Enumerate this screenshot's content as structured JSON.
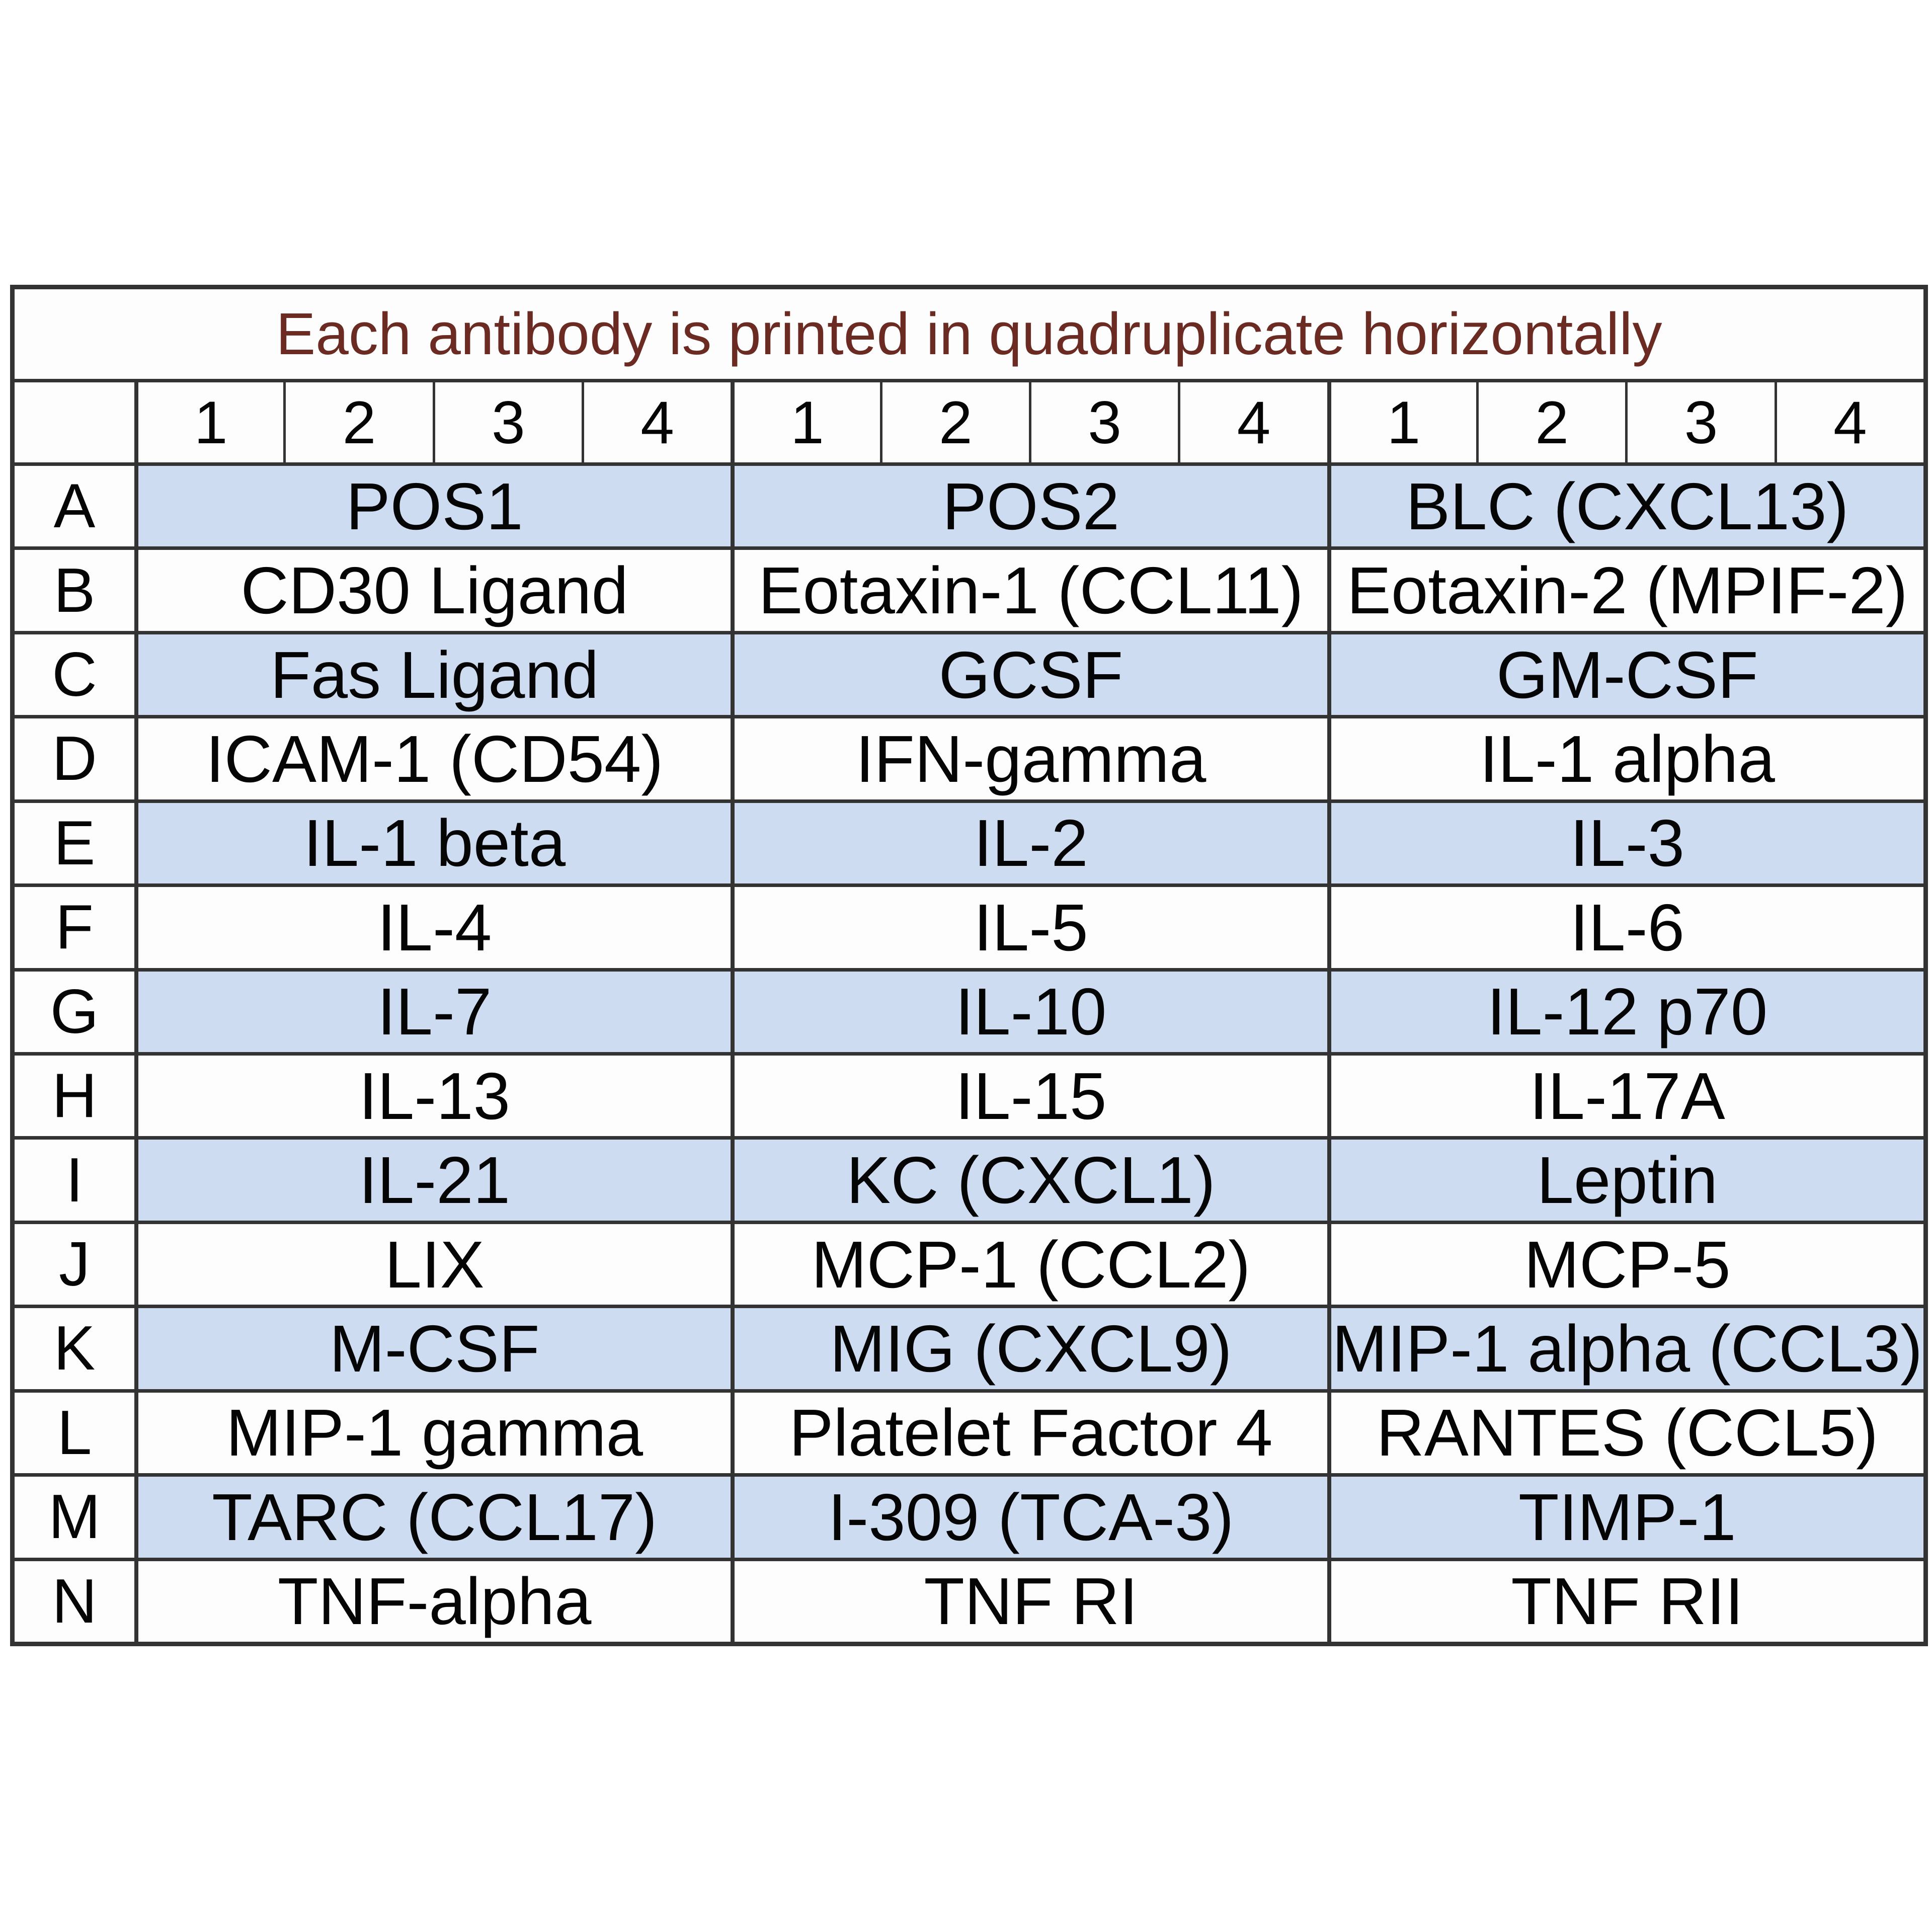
{
  "title": "Each antibody is printed in quadruplicate horizontally",
  "colors": {
    "title_text": "#6b2a22",
    "row_shade": "#cddcf0",
    "border": "#333333",
    "cell_text": "#050505",
    "background": "#ffffff"
  },
  "header": {
    "corner": "",
    "groups": [
      [
        "1",
        "2",
        "3",
        "4"
      ],
      [
        "1",
        "2",
        "3",
        "4"
      ],
      [
        "1",
        "2",
        "3",
        "4"
      ]
    ]
  },
  "rows": [
    {
      "label": "A",
      "shaded": true,
      "cells": [
        "POS1",
        "POS2",
        "BLC (CXCL13)"
      ]
    },
    {
      "label": "B",
      "shaded": false,
      "cells": [
        "CD30 Ligand",
        "Eotaxin-1 (CCL11)",
        "Eotaxin-2 (MPIF-2)"
      ]
    },
    {
      "label": "C",
      "shaded": true,
      "cells": [
        "Fas Ligand",
        "GCSF",
        "GM-CSF"
      ]
    },
    {
      "label": "D",
      "shaded": false,
      "cells": [
        "ICAM-1 (CD54)",
        "IFN-gamma",
        "IL-1 alpha"
      ]
    },
    {
      "label": "E",
      "shaded": true,
      "cells": [
        "IL-1 beta",
        "IL-2",
        "IL-3"
      ]
    },
    {
      "label": "F",
      "shaded": false,
      "cells": [
        "IL-4",
        "IL-5",
        "IL-6"
      ]
    },
    {
      "label": "G",
      "shaded": true,
      "cells": [
        "IL-7",
        "IL-10",
        "IL-12 p70"
      ]
    },
    {
      "label": "H",
      "shaded": false,
      "cells": [
        "IL-13",
        "IL-15",
        "IL-17A"
      ]
    },
    {
      "label": "I",
      "shaded": true,
      "cells": [
        "IL-21",
        "KC (CXCL1)",
        "Leptin"
      ]
    },
    {
      "label": "J",
      "shaded": false,
      "cells": [
        "LIX",
        "MCP-1 (CCL2)",
        "MCP-5"
      ]
    },
    {
      "label": "K",
      "shaded": true,
      "cells": [
        "M-CSF",
        "MIG (CXCL9)",
        "MIP-1 alpha (CCL3)"
      ]
    },
    {
      "label": "L",
      "shaded": false,
      "cells": [
        "MIP-1 gamma",
        "Platelet Factor 4",
        "RANTES (CCL5)"
      ]
    },
    {
      "label": "M",
      "shaded": true,
      "cells": [
        "TARC (CCL17)",
        "I-309 (TCA-3)",
        "TIMP-1"
      ]
    },
    {
      "label": "N",
      "shaded": false,
      "cells": [
        "TNF-alpha",
        "TNF RI",
        "TNF RII"
      ]
    }
  ]
}
